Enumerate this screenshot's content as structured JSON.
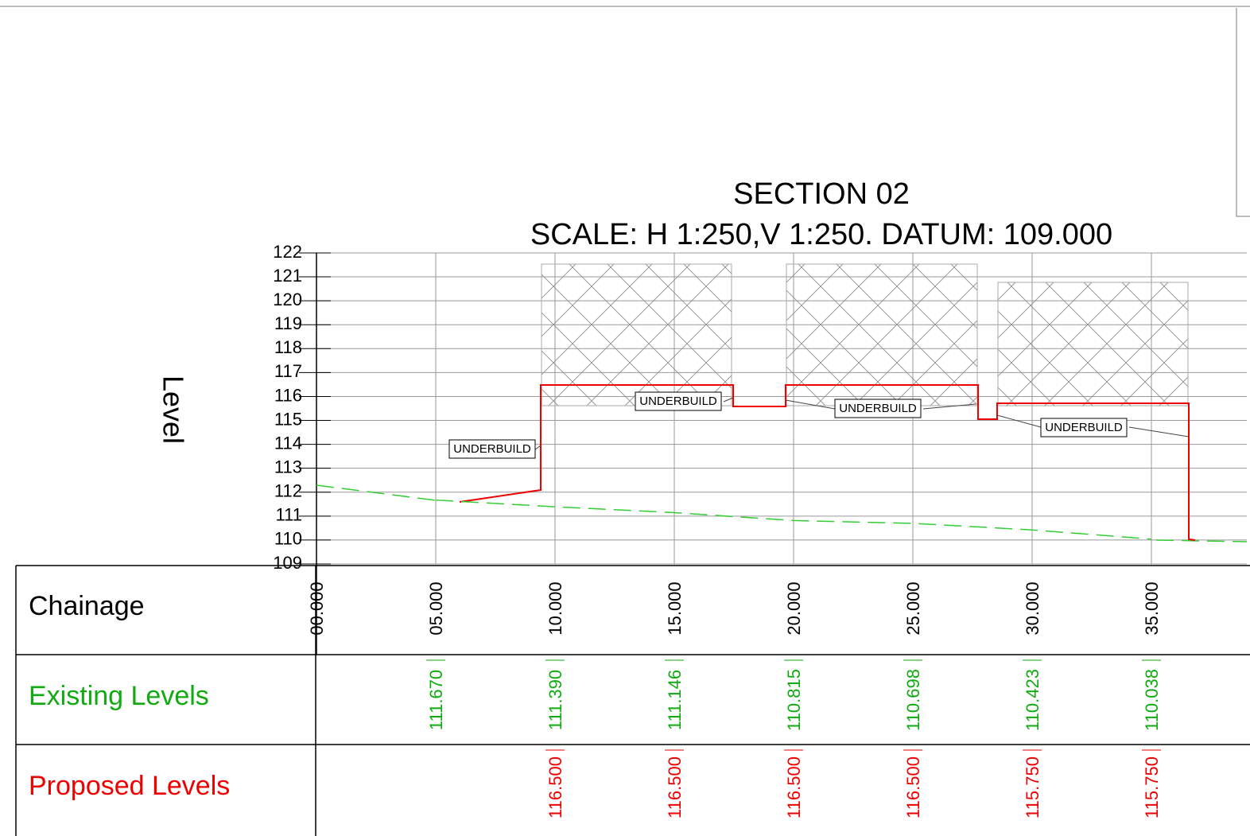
{
  "title": "SECTION 02",
  "subtitle": "SCALE: H 1:250,V 1:250. DATUM: 109.000",
  "axis_label": "Level",
  "level_ticks": [
    122,
    121,
    120,
    119,
    118,
    117,
    116,
    115,
    114,
    113,
    112,
    111,
    110,
    109
  ],
  "annotations": [
    "UNDERBUILD",
    "UNDERBUILD",
    "UNDERBUILD",
    "UNDERBUILD"
  ],
  "table": {
    "row_labels": [
      "Chainage",
      "Existing Levels",
      "Proposed Levels"
    ],
    "chainage": [
      "00.000",
      "05.000",
      "10.000",
      "15.000",
      "20.000",
      "25.000",
      "30.000",
      "35.000"
    ],
    "existing": [
      "111.670",
      "111.390",
      "111.146",
      "110.815",
      "110.698",
      "110.423",
      "110.038"
    ],
    "proposed": [
      "116.500",
      "116.500",
      "116.500",
      "116.500",
      "115.750",
      "115.750"
    ]
  }
}
